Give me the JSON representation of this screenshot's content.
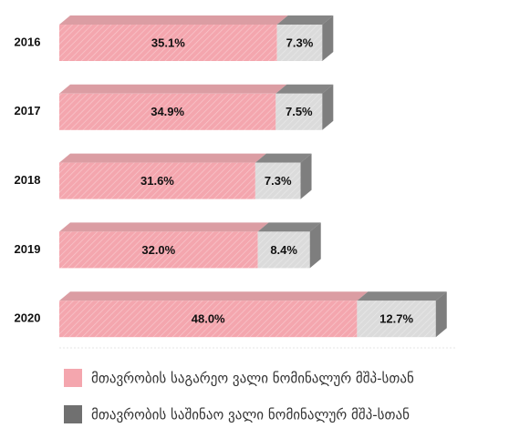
{
  "chart_data": {
    "type": "bar",
    "orientation": "horizontal",
    "stacked": true,
    "categories": [
      "2016",
      "2017",
      "2018",
      "2019",
      "2020"
    ],
    "series": [
      {
        "name": "მთავრობის საგარეო ვალი ნომინალურ მშპ-სთან",
        "color": "#f4a6ae",
        "values": [
          35.1,
          34.9,
          31.6,
          32.0,
          48.0
        ],
        "value_labels": [
          "35.1%",
          "34.9%",
          "31.6%",
          "32.0%",
          "48.0%"
        ]
      },
      {
        "name": "მთავრობის საშინაო ვალი ნომინალურ მშპ-სთან",
        "color": "#707070",
        "values": [
          7.3,
          7.5,
          7.3,
          8.4,
          12.7
        ],
        "value_labels": [
          "7.3%",
          "7.5%",
          "7.3%",
          "8.4%",
          "12.7%"
        ]
      }
    ]
  }
}
